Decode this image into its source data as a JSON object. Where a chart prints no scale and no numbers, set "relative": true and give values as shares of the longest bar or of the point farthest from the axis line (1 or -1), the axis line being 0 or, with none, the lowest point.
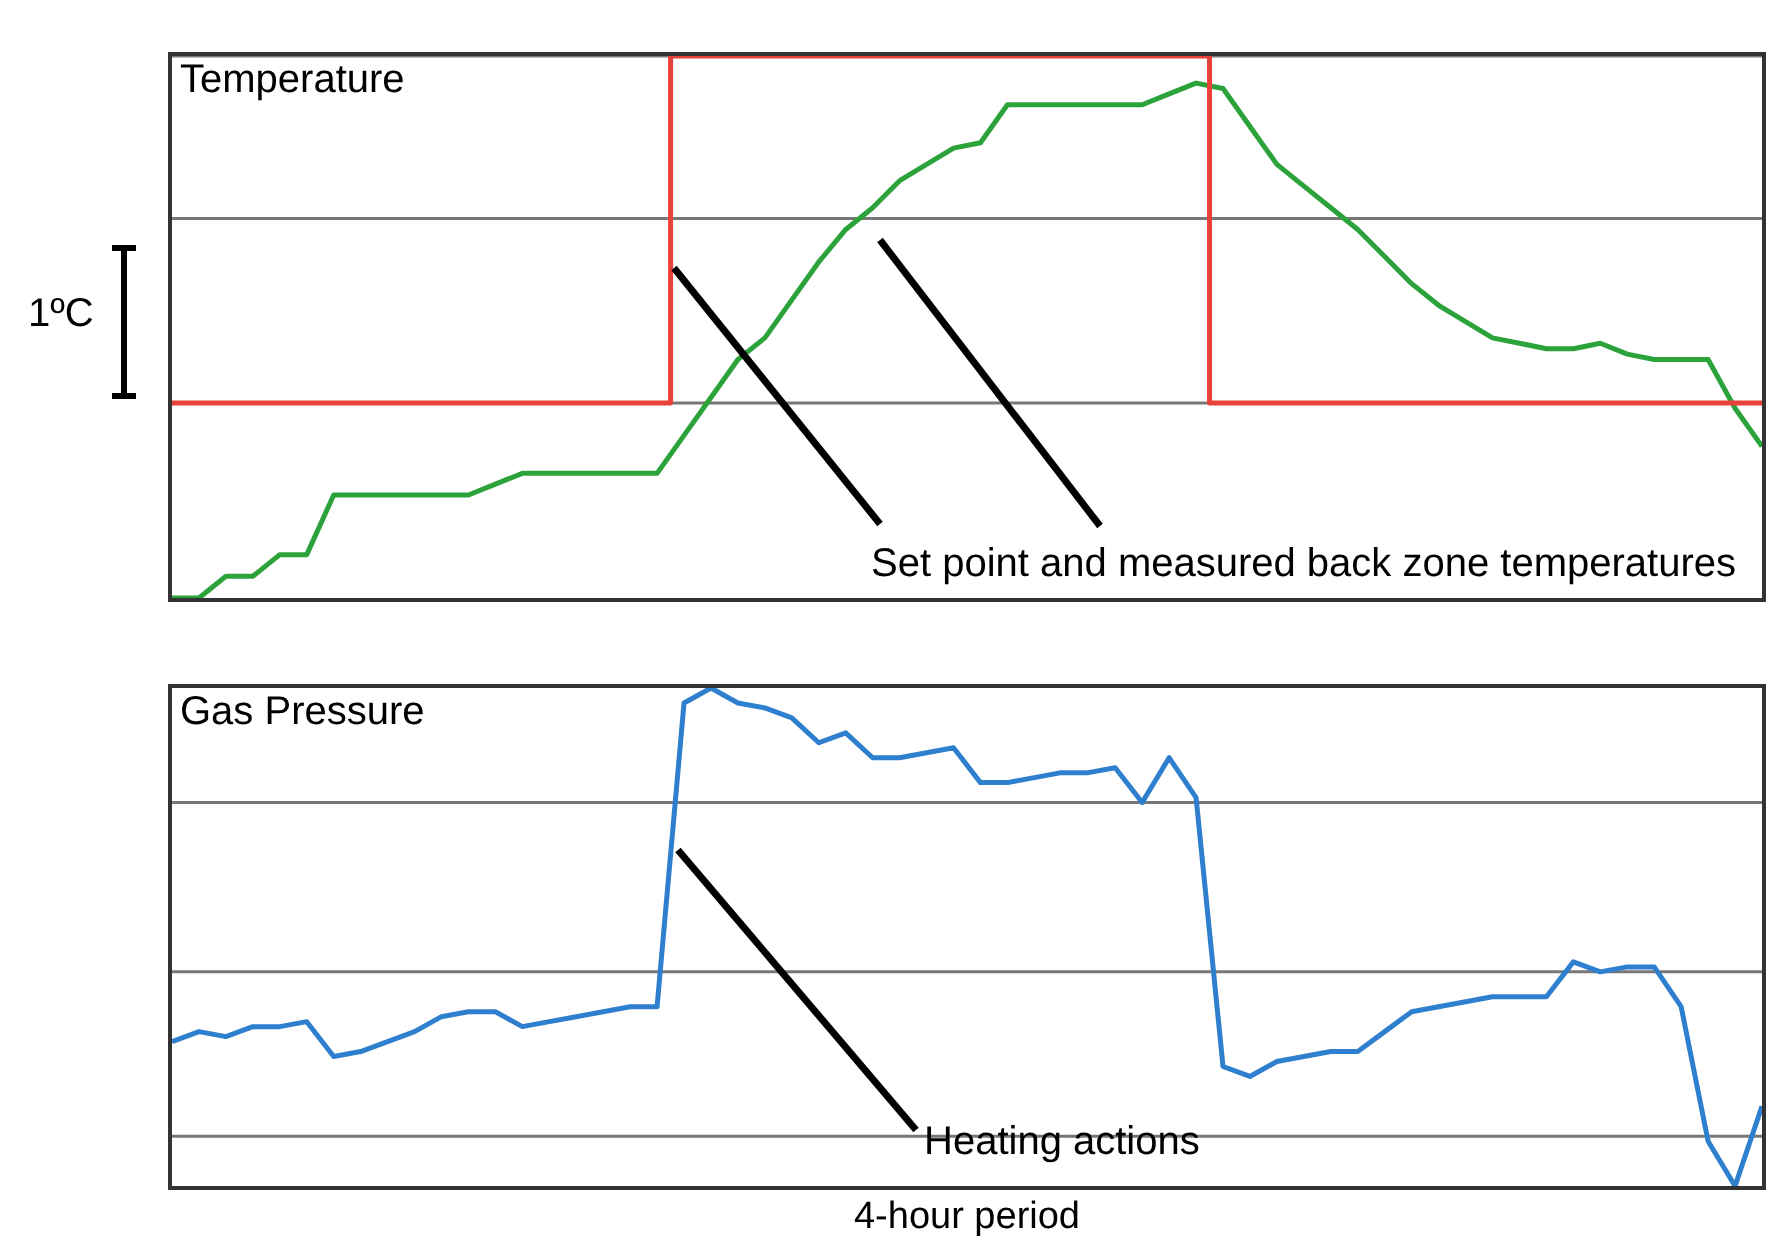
{
  "chart_data": [
    {
      "type": "line",
      "title": "Temperature",
      "relative": true,
      "legend": false,
      "marker": "none",
      "ref_lines": [
        {
          "axis": "y",
          "value": 1,
          "color": "#777777"
        },
        {
          "axis": "y",
          "value": 0.7,
          "color": "#777777"
        },
        {
          "axis": "y",
          "value": 0.36,
          "color": "#777777"
        }
      ],
      "categories": [
        null,
        null,
        null,
        null,
        null,
        null,
        null,
        null,
        null,
        null,
        null,
        null,
        null,
        null,
        null,
        null,
        null,
        null,
        null,
        null,
        null,
        null,
        null,
        null,
        null,
        null,
        null,
        null,
        null,
        null,
        null,
        null,
        null,
        null,
        null,
        null,
        null,
        null,
        null,
        null,
        null,
        null,
        null,
        null,
        null,
        null,
        null,
        null,
        null,
        null,
        null,
        null,
        null,
        null,
        null,
        null,
        null,
        null,
        null,
        null
      ],
      "series": [
        {
          "type": "step",
          "color": "#e8413a",
          "values": [
            0.36,
            0.36,
            0.36,
            0.36,
            0.36,
            0.36,
            0.36,
            0.36,
            0.36,
            0.36,
            0.36,
            0.36,
            0.36,
            0.36,
            0.36,
            0.36,
            0.36,
            0.36,
            0.36,
            1,
            1,
            1,
            1,
            1,
            1,
            1,
            1,
            1,
            1,
            1,
            1,
            1,
            1,
            1,
            1,
            1,
            1,
            1,
            1,
            0.36,
            0.36,
            0.36,
            0.36,
            0.36,
            0.36,
            0.36,
            0.36,
            0.36,
            0.36,
            0.36,
            0.36,
            0.36,
            0.36,
            0.36,
            0.36,
            0.36,
            0.36,
            0.36,
            0.36,
            0.36
          ]
        },
        {
          "type": "line",
          "color": "#2ca33a",
          "values": [
            0,
            0,
            0.04,
            0.04,
            0.08,
            0.08,
            0.19,
            0.19,
            0.19,
            0.19,
            0.19,
            0.19,
            0.21,
            0.23,
            0.23,
            0.23,
            0.23,
            0.23,
            0.23,
            0.3,
            0.37,
            0.44,
            0.48,
            0.55,
            0.62,
            0.68,
            0.72,
            0.77,
            0.8,
            0.83,
            0.84,
            0.91,
            0.91,
            0.91,
            0.91,
            0.91,
            0.91,
            0.93,
            0.95,
            0.94,
            0.87,
            0.8,
            0.76,
            0.72,
            0.68,
            0.63,
            0.58,
            0.54,
            0.51,
            0.48,
            0.47,
            0.46,
            0.46,
            0.47,
            0.45,
            0.44,
            0.44,
            0.44,
            0.35,
            0.28
          ]
        }
      ],
      "annotations": [
        "Set point and measured back zone temperatures",
        "1ºC"
      ]
    },
    {
      "type": "line",
      "title": "Gas Pressure",
      "xlabel": "4-hour period",
      "relative": true,
      "legend": false,
      "marker": "none",
      "ref_lines": [
        {
          "axis": "y",
          "value": 0.77,
          "color": "#777777"
        },
        {
          "axis": "y",
          "value": 0.43,
          "color": "#777777"
        },
        {
          "axis": "y",
          "value": 0.1,
          "color": "#777777"
        }
      ],
      "categories": [
        null,
        null,
        null,
        null,
        null,
        null,
        null,
        null,
        null,
        null,
        null,
        null,
        null,
        null,
        null,
        null,
        null,
        null,
        null,
        null,
        null,
        null,
        null,
        null,
        null,
        null,
        null,
        null,
        null,
        null,
        null,
        null,
        null,
        null,
        null,
        null,
        null,
        null,
        null,
        null,
        null,
        null,
        null,
        null,
        null,
        null,
        null,
        null,
        null,
        null,
        null,
        null,
        null,
        null,
        null,
        null,
        null,
        null,
        null,
        null
      ],
      "series": [
        {
          "type": "line",
          "color": "#2f7fcf",
          "values": [
            0.29,
            0.31,
            0.3,
            0.32,
            0.32,
            0.33,
            0.26,
            0.27,
            0.29,
            0.31,
            0.34,
            0.35,
            0.35,
            0.32,
            0.33,
            0.34,
            0.35,
            0.36,
            0.36,
            0.97,
            1,
            0.97,
            0.96,
            0.94,
            0.89,
            0.91,
            0.86,
            0.86,
            0.87,
            0.88,
            0.81,
            0.81,
            0.82,
            0.83,
            0.83,
            0.84,
            0.77,
            0.86,
            0.78,
            0.24,
            0.22,
            0.25,
            0.26,
            0.27,
            0.27,
            0.31,
            0.35,
            0.36,
            0.37,
            0.38,
            0.38,
            0.38,
            0.45,
            0.43,
            0.44,
            0.44,
            0.36,
            0.09,
            0,
            0.16
          ]
        }
      ],
      "annotations": [
        "Heating actions"
      ]
    }
  ]
}
